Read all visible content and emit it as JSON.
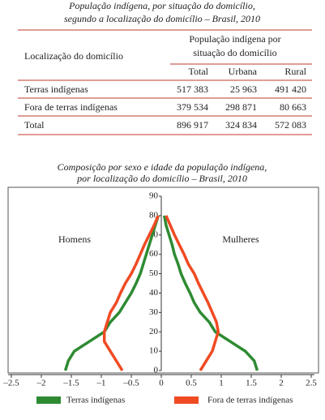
{
  "table": {
    "title": [
      "População indígena, por situação do domicílio,",
      "segundo a localização do domicílio – Brasil, 2010"
    ],
    "row_header": "Localização do domicílio",
    "group_header": [
      "População indígena por",
      "situação do domicílio"
    ],
    "columns": [
      "Total",
      "Urbana",
      "Rural"
    ],
    "rows": [
      [
        "Terras indígenas",
        "517 383",
        "25 963",
        "491 420"
      ],
      [
        "Fora de terras indígenas",
        "379 534",
        "298 871",
        "80 663"
      ],
      [
        "Total",
        "896 917",
        "324 834",
        "572 083"
      ]
    ]
  },
  "chart_data": {
    "type": "pyramid-line",
    "title": [
      "Composição por sexo e idade da população indígena,",
      "por localização do domicílio – Brasil, 2010"
    ],
    "annotations": [
      "Homens",
      "Mulheres"
    ],
    "y": [
      0,
      5,
      10,
      15,
      20,
      25,
      30,
      35,
      40,
      45,
      50,
      55,
      60,
      65,
      70,
      75,
      80
    ],
    "series": [
      {
        "name": "Terras indígenas",
        "color": "#2e8b32",
        "men": [
          -1.6,
          -1.55,
          -1.45,
          -1.2,
          -0.95,
          -0.85,
          -0.7,
          -0.6,
          -0.5,
          -0.42,
          -0.35,
          -0.3,
          -0.25,
          -0.2,
          -0.15,
          -0.1,
          -0.05
        ],
        "women": [
          1.6,
          1.55,
          1.4,
          1.15,
          0.9,
          0.8,
          0.65,
          0.55,
          0.48,
          0.4,
          0.33,
          0.28,
          0.22,
          0.18,
          0.13,
          0.08,
          0.05
        ]
      },
      {
        "name": "Fora de terras indígenas",
        "color": "#f04a23",
        "men": [
          -0.65,
          -0.75,
          -0.85,
          -0.95,
          -0.95,
          -0.9,
          -0.85,
          -0.75,
          -0.68,
          -0.6,
          -0.5,
          -0.42,
          -0.35,
          -0.28,
          -0.2,
          -0.12,
          -0.05
        ],
        "women": [
          0.65,
          0.75,
          0.85,
          0.9,
          0.95,
          0.92,
          0.85,
          0.78,
          0.7,
          0.62,
          0.55,
          0.45,
          0.38,
          0.3,
          0.22,
          0.15,
          0.08
        ]
      }
    ],
    "xlim": [
      -2.5,
      2.5
    ],
    "xticks": [
      {
        "value": -2.5,
        "label": "–2.5"
      },
      {
        "value": -2,
        "label": "–2"
      },
      {
        "value": -1.5,
        "label": "–1.5"
      },
      {
        "value": -1,
        "label": "–1"
      },
      {
        "value": -0.5,
        "label": "–0.5"
      },
      0,
      0.5,
      1,
      1.5,
      2,
      2.5
    ],
    "ylim": [
      0,
      90
    ],
    "yticks": [
      0,
      10,
      20,
      30,
      40,
      50,
      60,
      70,
      80,
      90
    ]
  }
}
